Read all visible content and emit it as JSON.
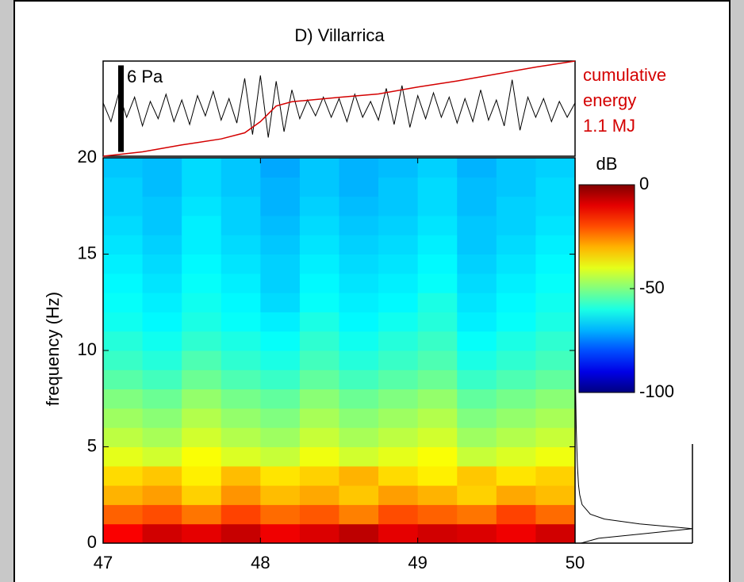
{
  "chart_data": {
    "type": "spectrogram",
    "title": "D) Villarrica",
    "ylabel": "frequency (Hz)",
    "xlim": [
      47,
      50
    ],
    "xticks": [
      47,
      48,
      49,
      50
    ],
    "ylim": [
      0,
      20
    ],
    "yticks": [
      0,
      5,
      10,
      15,
      20
    ],
    "colormap": "jet",
    "time_edges": [
      47,
      47.25,
      47.5,
      47.75,
      48,
      48.25,
      48.5,
      48.75,
      49,
      49.25,
      49.5,
      49.75,
      50
    ],
    "frequency_edges": [
      0,
      1,
      2,
      3,
      4,
      5,
      6,
      7,
      8,
      9,
      10,
      11,
      12,
      13,
      14,
      15,
      16,
      17,
      18,
      19,
      20
    ],
    "z": [
      [
        -12,
        -8,
        -10,
        -7,
        -11,
        -9,
        -6,
        -10,
        -8,
        -9,
        -11,
        -8
      ],
      [
        -22,
        -20,
        -24,
        -19,
        -23,
        -21,
        -25,
        -20,
        -22,
        -24,
        -19,
        -23
      ],
      [
        -30,
        -28,
        -33,
        -27,
        -31,
        -29,
        -32,
        -28,
        -30,
        -33,
        -29,
        -31
      ],
      [
        -34,
        -32,
        -36,
        -31,
        -35,
        -33,
        -30,
        -34,
        -36,
        -32,
        -35,
        -33
      ],
      [
        -40,
        -42,
        -38,
        -41,
        -43,
        -39,
        -42,
        -40,
        -38,
        -43,
        -41,
        -39
      ],
      [
        -44,
        -46,
        -42,
        -45,
        -47,
        -43,
        -46,
        -44,
        -42,
        -47,
        -45,
        -43
      ],
      [
        -47,
        -49,
        -45,
        -48,
        -50,
        -46,
        -49,
        -47,
        -45,
        -50,
        -48,
        -46
      ],
      [
        -50,
        -52,
        -48,
        -51,
        -53,
        -49,
        -52,
        -50,
        -48,
        -53,
        -51,
        -49
      ],
      [
        -54,
        -56,
        -52,
        -55,
        -57,
        -53,
        -56,
        -54,
        -52,
        -57,
        -55,
        -53
      ],
      [
        -57,
        -59,
        -55,
        -58,
        -60,
        -56,
        -59,
        -57,
        -55,
        -60,
        -58,
        -56
      ],
      [
        -59,
        -61,
        -58,
        -60,
        -62,
        -58,
        -61,
        -59,
        -57,
        -62,
        -60,
        -58
      ],
      [
        -61,
        -63,
        -60,
        -62,
        -64,
        -60,
        -63,
        -61,
        -59,
        -64,
        -62,
        -60
      ],
      [
        -62,
        -64,
        -61,
        -63,
        -66,
        -62,
        -64,
        -63,
        -60,
        -65,
        -63,
        -61
      ],
      [
        -63,
        -65,
        -62,
        -64,
        -67,
        -63,
        -65,
        -64,
        -62,
        -66,
        -64,
        -62
      ],
      [
        -64,
        -66,
        -63,
        -65,
        -67,
        -64,
        -66,
        -65,
        -63,
        -67,
        -65,
        -63
      ],
      [
        -65,
        -67,
        -64,
        -66,
        -68,
        -65,
        -67,
        -66,
        -64,
        -68,
        -66,
        -64
      ],
      [
        -66,
        -68,
        -64,
        -67,
        -69,
        -66,
        -68,
        -67,
        -65,
        -68,
        -67,
        -65
      ],
      [
        -67,
        -68,
        -65,
        -67,
        -70,
        -67,
        -69,
        -68,
        -66,
        -69,
        -67,
        -66
      ],
      [
        -67,
        -69,
        -66,
        -68,
        -70,
        -68,
        -70,
        -68,
        -66,
        -69,
        -68,
        -66
      ],
      [
        -68,
        -69,
        -66,
        -68,
        -71,
        -68,
        -70,
        -69,
        -67,
        -70,
        -68,
        -67
      ]
    ],
    "colorbar": {
      "label": "dB",
      "clim": [
        -100,
        0
      ],
      "ticks": [
        0,
        -50,
        -100
      ]
    },
    "waveform": {
      "color": "#000000",
      "ylim": [
        -3.3,
        3.3
      ],
      "scale_bar": {
        "value": 6,
        "label": "6 Pa"
      },
      "x": [
        47,
        47.05,
        47.1,
        47.15,
        47.2,
        47.25,
        47.3,
        47.35,
        47.4,
        47.45,
        47.5,
        47.55,
        47.6,
        47.65,
        47.7,
        47.75,
        47.8,
        47.85,
        47.9,
        47.95,
        48,
        48.05,
        48.1,
        48.15,
        48.2,
        48.25,
        48.3,
        48.35,
        48.4,
        48.45,
        48.5,
        48.55,
        48.6,
        48.65,
        48.7,
        48.75,
        48.8,
        48.85,
        48.9,
        48.95,
        49,
        49.05,
        49.1,
        49.15,
        49.2,
        49.25,
        49.3,
        49.35,
        49.4,
        49.45,
        49.5,
        49.55,
        49.6,
        49.65,
        49.7,
        49.75,
        49.8,
        49.85,
        49.9,
        49.95,
        50
      ],
      "values": [
        0.4,
        -0.9,
        1.1,
        -0.6,
        0.8,
        -1.2,
        0.5,
        -0.7,
        1.0,
        -0.9,
        0.6,
        -1.1,
        0.9,
        -0.5,
        1.2,
        -0.8,
        0.7,
        -1.0,
        2.1,
        -1.8,
        2.3,
        -2.0,
        1.9,
        -1.6,
        1.3,
        -0.7,
        0.6,
        -0.5,
        0.8,
        -0.6,
        0.7,
        -0.9,
        1.0,
        -0.6,
        0.5,
        -0.8,
        1.4,
        -1.1,
        1.6,
        -1.3,
        0.9,
        -0.7,
        1.1,
        -0.6,
        0.8,
        -1.0,
        0.7,
        -0.9,
        1.3,
        -0.8,
        0.6,
        -1.2,
        2.0,
        -1.5,
        0.8,
        -0.6,
        0.7,
        -0.9,
        0.5,
        -0.6,
        0.4
      ]
    },
    "energy": {
      "color": "#d40000",
      "labels": [
        "cumulative",
        "energy",
        "1.1 MJ"
      ],
      "ylim": [
        0,
        1.1
      ],
      "x": [
        47,
        47.25,
        47.5,
        47.75,
        47.9,
        48,
        48.1,
        48.2,
        48.5,
        48.75,
        49,
        49.25,
        49.5,
        49.75,
        50
      ],
      "values": [
        0,
        0.05,
        0.13,
        0.2,
        0.27,
        0.4,
        0.58,
        0.63,
        0.68,
        0.72,
        0.8,
        0.87,
        0.95,
        1.03,
        1.1
      ]
    },
    "spectrum": {
      "color": "#000000",
      "xlim": [
        0,
        1
      ],
      "frequency": [
        0,
        0.25,
        0.5,
        0.75,
        1,
        1.25,
        1.5,
        2,
        2.5,
        3,
        4,
        5,
        6,
        8,
        10,
        15,
        20
      ],
      "values": [
        0.05,
        0.2,
        0.6,
        1.0,
        0.55,
        0.25,
        0.13,
        0.06,
        0.04,
        0.03,
        0.02,
        0.015,
        0.01,
        0.005,
        0.003,
        0.002,
        0.001
      ]
    }
  }
}
